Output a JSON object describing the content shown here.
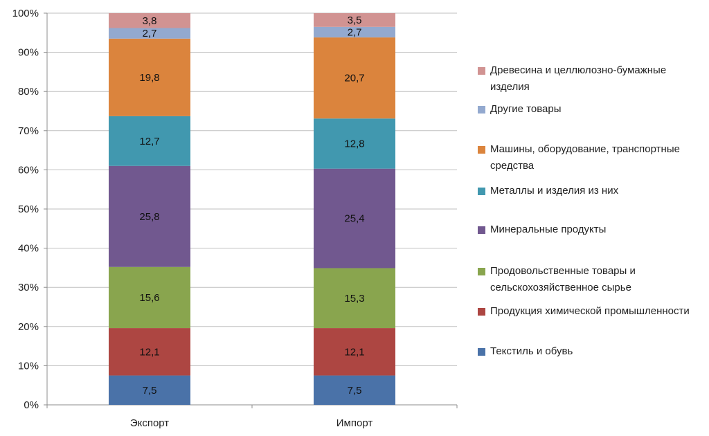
{
  "chart_data": {
    "type": "bar",
    "stacked": true,
    "percent": true,
    "categories": [
      "Экспорт",
      "Импорт"
    ],
    "yticks": [
      "0%",
      "10%",
      "20%",
      "30%",
      "40%",
      "50%",
      "60%",
      "70%",
      "80%",
      "90%",
      "100%"
    ],
    "ylim": [
      0,
      100
    ],
    "grid": true,
    "legend_position": "right",
    "series": [
      {
        "name": "Текстиль и обувь",
        "color": "#4a72a8",
        "values": [
          7.5,
          7.5
        ],
        "labels": [
          "7,5",
          "7,5"
        ]
      },
      {
        "name": "Продукция химической промышленности",
        "color": "#ad4642",
        "values": [
          12.1,
          12.1
        ],
        "labels": [
          "12,1",
          "12,1"
        ]
      },
      {
        "name": "Продовольственные товары и сельскохозяйственное сырье",
        "color": "#89a54e",
        "values": [
          15.6,
          15.3
        ],
        "labels": [
          "15,6",
          "15,3"
        ]
      },
      {
        "name": "Минеральные продукты",
        "color": "#71588f",
        "values": [
          25.8,
          25.4
        ],
        "labels": [
          "25,8",
          "25,4"
        ]
      },
      {
        "name": "Металлы и изделия из них",
        "color": "#4198af",
        "values": [
          12.7,
          12.8
        ],
        "labels": [
          "12,7",
          "12,8"
        ]
      },
      {
        "name": "Машины, оборудование, транспортные средства",
        "color": "#db843d",
        "values": [
          19.8,
          20.7
        ],
        "labels": [
          "19,8",
          "20,7"
        ]
      },
      {
        "name": "Другие товары",
        "color": "#93a9cf",
        "values": [
          2.7,
          2.7
        ],
        "labels": [
          "2,7",
          "2,7"
        ]
      },
      {
        "name": "Древесина и целлюлозно-бумажные изделия",
        "color": "#d19392",
        "values": [
          3.8,
          3.5
        ],
        "labels": [
          "3,8",
          "3,5"
        ]
      }
    ]
  }
}
